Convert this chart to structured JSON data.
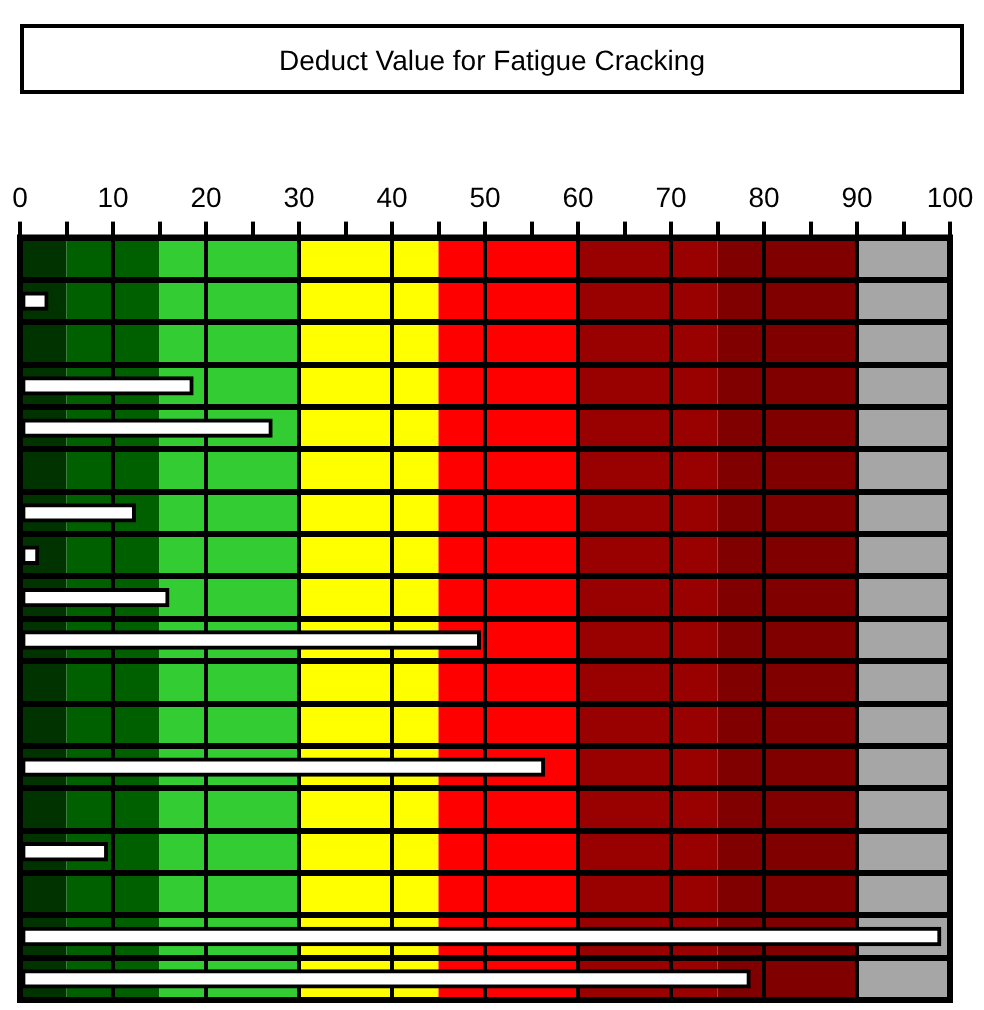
{
  "chart_data": {
    "type": "bar",
    "orientation": "horizontal",
    "title": "Deduct Value for Fatigue Cracking",
    "categories": [
      null,
      null,
      null,
      null,
      null,
      null,
      null,
      null,
      null,
      null,
      null,
      null,
      null,
      null,
      null,
      null,
      null,
      null
    ],
    "values": [
      null,
      3,
      null,
      18.6,
      27.1,
      null,
      12.4,
      2,
      16,
      49.5,
      null,
      null,
      56.4,
      null,
      9.4,
      null,
      99,
      78.5
    ],
    "color": "#ffffff",
    "xlim": [
      0,
      100
    ],
    "xticks": [
      0,
      {
        "value": 5,
        "label": null
      },
      10,
      {
        "value": 15,
        "label": null
      },
      20,
      {
        "value": 25,
        "label": null
      },
      30,
      {
        "value": 35,
        "label": null
      },
      40,
      {
        "value": 45,
        "label": null
      },
      50,
      {
        "value": 55,
        "label": null
      },
      60,
      {
        "value": 65,
        "label": null
      },
      70,
      {
        "value": 75,
        "label": null
      },
      80,
      {
        "value": 85,
        "label": null
      },
      90,
      {
        "value": 95,
        "label": null
      },
      100
    ],
    "bands": [
      {
        "axis": "x",
        "from": 0,
        "to": 5,
        "color": "#003300"
      },
      {
        "axis": "x",
        "from": 5,
        "to": 15,
        "color": "#006000"
      },
      {
        "axis": "x",
        "from": 15,
        "to": 30,
        "color": "#33cc33"
      },
      {
        "axis": "x",
        "from": 30,
        "to": 45,
        "color": "#ffff00"
      },
      {
        "axis": "x",
        "from": 45,
        "to": 60,
        "color": "#ff0000"
      },
      {
        "axis": "x",
        "from": 60,
        "to": 75,
        "color": "#990000"
      },
      {
        "axis": "x",
        "from": 75,
        "to": 90,
        "color": "#800000"
      },
      {
        "axis": "x",
        "from": 90,
        "to": 100,
        "color": "#a6a6a6"
      }
    ],
    "grid": true,
    "tick_labels": "x",
    "legend": false
  }
}
